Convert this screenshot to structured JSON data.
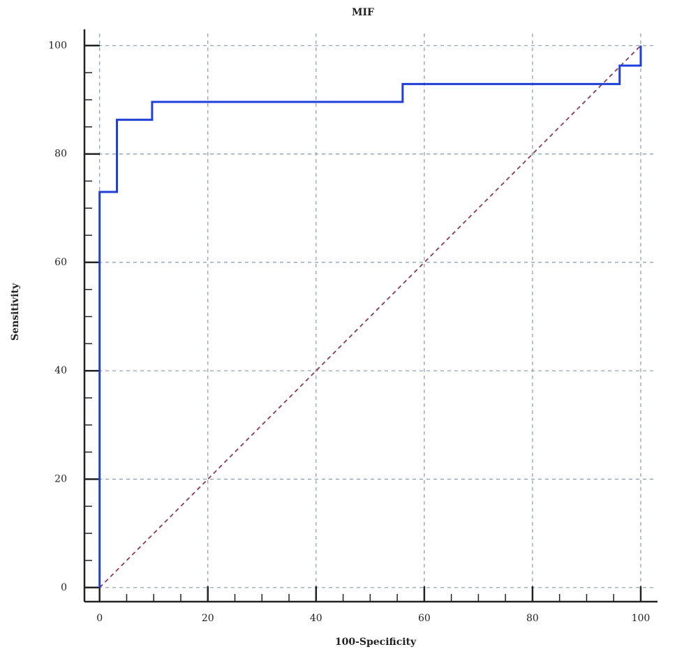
{
  "chart_data": {
    "type": "line",
    "title": "MIF",
    "xlabel": "100-Specificity",
    "ylabel": "Sensitivity",
    "xlim": [
      -2.8,
      103.1
    ],
    "ylim": [
      -2.6,
      103
    ],
    "xticks": [
      0,
      20,
      40,
      60,
      80,
      100
    ],
    "yticks": [
      0,
      20,
      40,
      60,
      80,
      100
    ],
    "x_minor_ticks": [
      5,
      10,
      15,
      25,
      30,
      35,
      45,
      50,
      55,
      65,
      70,
      75,
      85,
      90,
      95
    ],
    "y_minor_ticks": [
      5,
      10,
      15,
      25,
      30,
      35,
      45,
      50,
      55,
      65,
      70,
      75,
      85,
      90,
      95
    ],
    "grid": true,
    "grid_color": "#8a9ba8",
    "axis_color": "#222222",
    "series": [
      {
        "color": "#1f3fd8",
        "dashed": false,
        "x": [
          0,
          0,
          3.2,
          3.2,
          9.7,
          9.7,
          56,
          56,
          96.1,
          96.1,
          100,
          100
        ],
        "values": [
          0,
          73,
          73,
          86.3,
          86.3,
          89.6,
          89.6,
          92.9,
          92.9,
          96.3,
          96.3,
          100
        ]
      },
      {
        "color": "#8b3a50",
        "dashed": true,
        "x": [
          0,
          100
        ],
        "values": [
          0,
          100
        ]
      }
    ]
  }
}
